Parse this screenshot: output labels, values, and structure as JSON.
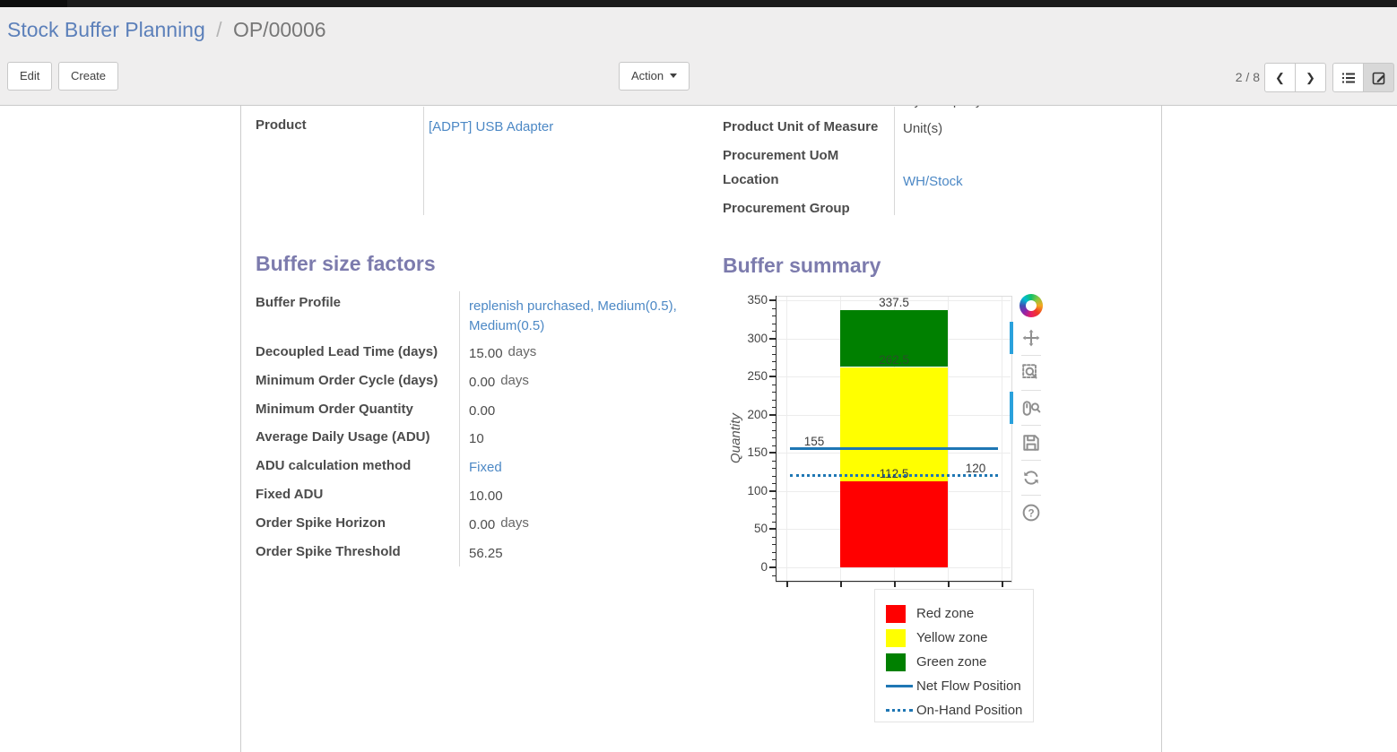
{
  "breadcrumb": {
    "parent": "Stock Buffer Planning",
    "separator": "/",
    "current": "OP/00006"
  },
  "toolbar": {
    "edit_label": "Edit",
    "create_label": "Create",
    "action_label": "Action"
  },
  "pager": {
    "position": "2 / 8",
    "prev_icon": "❮",
    "next_icon": "❯"
  },
  "sheet": {
    "clipped_top_value": "My Company",
    "product_fields": {
      "product_label": "Product",
      "product_value": "[ADPT] USB Adapter",
      "uom_label": "Product Unit of Measure",
      "uom_value": "Unit(s)",
      "proc_uom_label": "Procurement UoM",
      "proc_uom_value": "",
      "location_label": "Location",
      "location_value": "WH/Stock",
      "proc_group_label": "Procurement Group",
      "proc_group_value": ""
    },
    "factors": {
      "title": "Buffer size factors",
      "rows": [
        {
          "label": "Buffer Profile",
          "value": "replenish purchased, Medium(0.5), Medium(0.5)"
        },
        {
          "label": "Decoupled Lead Time (days)",
          "value": "15.00",
          "suffix": "days"
        },
        {
          "label": "Minimum Order Cycle (days)",
          "value": "0.00",
          "suffix": "days"
        },
        {
          "label": "Minimum Order Quantity",
          "value": "0.00"
        },
        {
          "label": "Average Daily Usage (ADU)",
          "value": "10"
        },
        {
          "label": "ADU calculation method",
          "value": "Fixed"
        },
        {
          "label": "Fixed ADU",
          "value": "10.00"
        },
        {
          "label": "Order Spike Horizon",
          "value": "0.00",
          "suffix": "days"
        },
        {
          "label": "Order Spike Threshold",
          "value": "56.25"
        }
      ]
    },
    "summary_title": "Buffer summary"
  },
  "chart_data": {
    "type": "bar",
    "title": "Buffer summary",
    "xlabel": "",
    "ylabel": "Quantity",
    "ylim": [
      0,
      350
    ],
    "yticks": [
      0,
      50,
      100,
      150,
      200,
      250,
      300,
      350
    ],
    "minor_tick_step": 10,
    "grid": true,
    "zones": [
      {
        "name": "Red zone",
        "from": 0,
        "to": 112.5,
        "color": "#ff0000"
      },
      {
        "name": "Yellow zone",
        "from": 112.5,
        "to": 262.5,
        "color": "#ffff00"
      },
      {
        "name": "Green zone",
        "from": 262.5,
        "to": 337.5,
        "color": "#008000"
      }
    ],
    "lines": [
      {
        "name": "Net Flow Position",
        "value": 155,
        "style": "solid",
        "color": "#1f77b4"
      },
      {
        "name": "On-Hand Position",
        "value": 120,
        "style": "dotted",
        "color": "#1f77b4"
      }
    ],
    "annotations": [
      {
        "text": "337.5",
        "value": 337.5,
        "x": "bar-center",
        "muted": false
      },
      {
        "text": "262.5",
        "value": 262.5,
        "x": "bar-center",
        "muted": true
      },
      {
        "text": "155",
        "value": 155,
        "x": "left-of-bar",
        "muted": false
      },
      {
        "text": "112.5",
        "value": 112.5,
        "x": "bar-center",
        "muted": false
      },
      {
        "text": "120",
        "value": 120,
        "x": "right-of-bar",
        "muted": false
      }
    ],
    "legend": {
      "position": "below-right",
      "entries": [
        {
          "label": "Red zone",
          "marker": "swatch",
          "color": "#ff0000"
        },
        {
          "label": "Yellow zone",
          "marker": "swatch",
          "color": "#ffff00"
        },
        {
          "label": "Green zone",
          "marker": "swatch",
          "color": "#008000"
        },
        {
          "label": "Net Flow Position",
          "marker": "line",
          "color": "#1f77b4"
        },
        {
          "label": "On-Hand Position",
          "marker": "dotted-line",
          "color": "#1f77b4"
        }
      ]
    }
  },
  "chart_toolbar": {
    "tools": [
      "bokeh-logo",
      "pan",
      "box-zoom",
      "wheel-zoom",
      "save",
      "reset",
      "help"
    ],
    "active_tools": [
      "pan",
      "wheel-zoom"
    ]
  }
}
